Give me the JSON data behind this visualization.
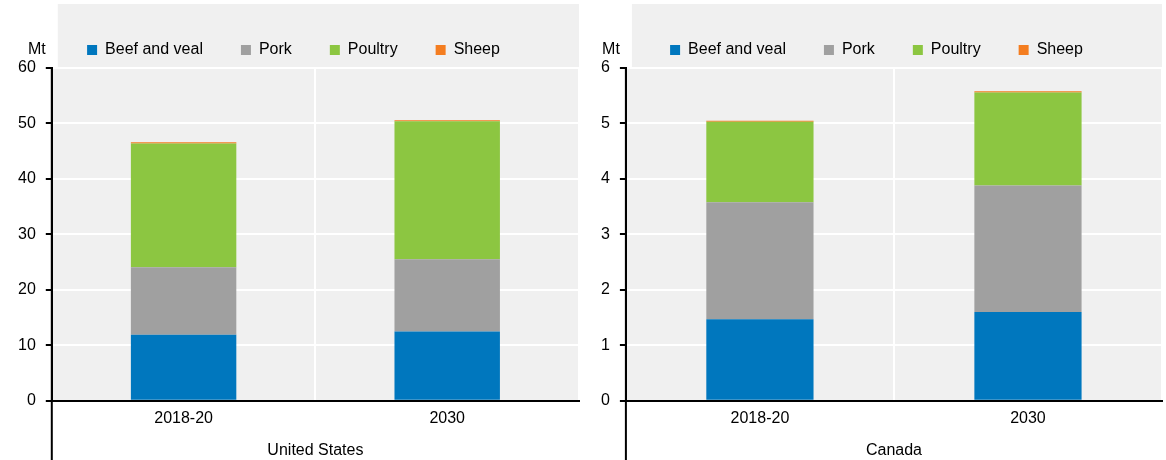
{
  "chart_data": [
    {
      "type": "bar",
      "xlabel": "United States",
      "ylabel": "Mt",
      "categories": [
        "2018-20",
        "2030"
      ],
      "stacked": true,
      "ylim": [
        0,
        60
      ],
      "yticks": [
        0,
        10,
        20,
        30,
        40,
        50,
        60
      ],
      "grid": true,
      "legend": "top",
      "series": [
        {
          "name": "Beef and veal",
          "color": "#0077be",
          "values": [
            11.9,
            12.5
          ]
        },
        {
          "name": "Pork",
          "color": "#a0a0a0",
          "values": [
            12.2,
            13.0
          ]
        },
        {
          "name": "Poultry",
          "color": "#8cc641",
          "values": [
            22.3,
            24.9
          ]
        },
        {
          "name": "Sheep",
          "color": "#f47d20",
          "values": [
            0.2,
            0.2
          ]
        }
      ]
    },
    {
      "type": "bar",
      "xlabel": "Canada",
      "ylabel": "Mt",
      "categories": [
        "2018-20",
        "2030"
      ],
      "stacked": true,
      "ylim": [
        0,
        6
      ],
      "yticks": [
        0,
        1,
        2,
        3,
        4,
        5,
        6
      ],
      "grid": true,
      "legend": "top",
      "series": [
        {
          "name": "Beef and veal",
          "color": "#0077be",
          "values": [
            1.47,
            1.6
          ]
        },
        {
          "name": "Pork",
          "color": "#a0a0a0",
          "values": [
            2.11,
            2.28
          ]
        },
        {
          "name": "Poultry",
          "color": "#8cc641",
          "values": [
            1.45,
            1.68
          ]
        },
        {
          "name": "Sheep",
          "color": "#f47d20",
          "values": [
            0.02,
            0.02
          ]
        }
      ]
    }
  ]
}
